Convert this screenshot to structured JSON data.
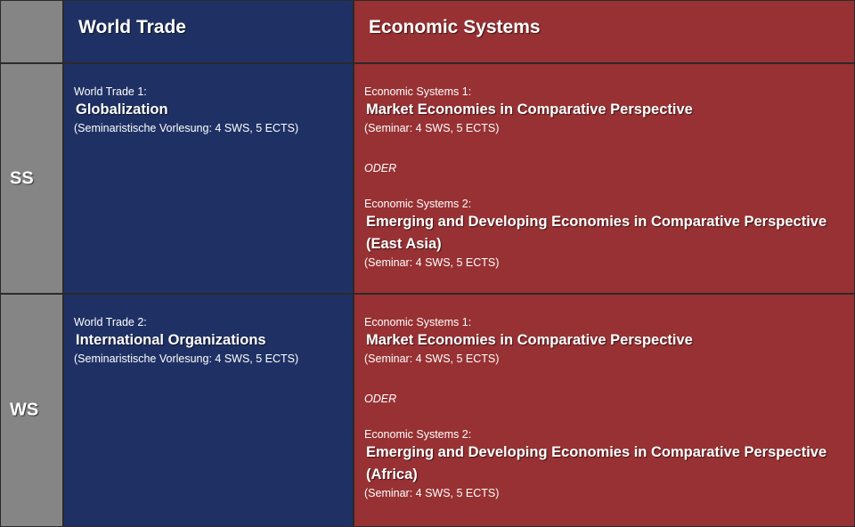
{
  "header": {
    "world_trade": "World Trade",
    "economic_systems": "Economic Systems"
  },
  "rows": {
    "ss": {
      "label": "SS",
      "world_trade": {
        "kicker": "World Trade 1:",
        "name": "Globalization",
        "meta": "(Seminaristische Vorlesung: 4 SWS, 5 ECTS)"
      },
      "econ_a": {
        "kicker": "Economic Systems 1:",
        "name": "Market Economies in Comparative Perspective",
        "meta": "(Seminar: 4 SWS, 5 ECTS)"
      },
      "or_label": "ODER",
      "econ_b": {
        "kicker": "Economic Systems 2:",
        "name_line1": "Emerging and Developing Economies in Comparative Perspective",
        "name_line2": "(East Asia)",
        "meta": "(Seminar: 4 SWS, 5 ECTS)"
      }
    },
    "ws": {
      "label": "WS",
      "world_trade": {
        "kicker": "World Trade 2:",
        "name": "International Organizations",
        "meta": "(Seminaristische Vorlesung: 4 SWS, 5 ECTS)"
      },
      "econ_a": {
        "kicker": "Economic Systems 1:",
        "name": "Market Economies in Comparative Perspective",
        "meta": "(Seminar: 4 SWS, 5 ECTS)"
      },
      "or_label": "ODER",
      "econ_b": {
        "kicker": "Economic Systems 2:",
        "name_line1": "Emerging and Developing Economies in Comparative Perspective",
        "name_line2": "(Africa)",
        "meta": "(Seminar: 4 SWS, 5 ECTS)"
      }
    }
  },
  "colors": {
    "gray": "#858585",
    "blue": "#1f3164",
    "red": "#983133"
  }
}
